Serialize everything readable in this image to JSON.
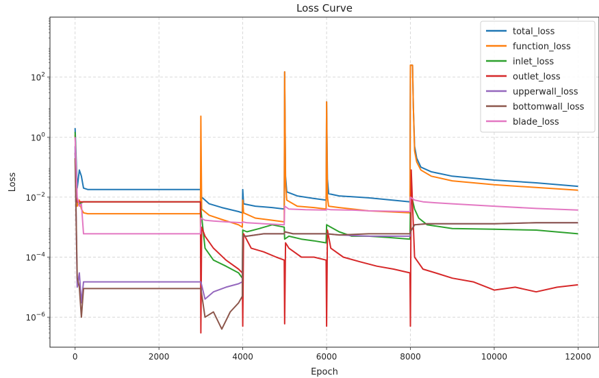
{
  "chart_data": {
    "type": "line",
    "title": "Loss Curve",
    "xlabel": "Epoch",
    "ylabel": "Loss",
    "xlim": [
      -600,
      12500
    ],
    "ylim": [
      1e-07,
      10000.0
    ],
    "yscale": "log",
    "grid": true,
    "legend_position": "top-right",
    "xticks": [
      0,
      2000,
      4000,
      6000,
      8000,
      10000,
      12000
    ],
    "xtick_labels": [
      "0",
      "2000",
      "4000",
      "6000",
      "8000",
      "10000",
      "12000"
    ],
    "yticks": [
      1e-06,
      0.0001,
      0.01,
      1,
      100
    ],
    "ytick_labels": [
      "10",
      "10",
      "10",
      "10",
      "10"
    ],
    "ytick_exponents": [
      "−6",
      "−4",
      "−2",
      "0",
      "2"
    ],
    "series": [
      {
        "name": "total_loss",
        "color": "#1f77b4",
        "x": [
          0,
          50,
          100,
          150,
          200,
          300,
          1000,
          2000,
          2990,
          3000,
          3020,
          3200,
          3500,
          3900,
          3990,
          4000,
          4020,
          4300,
          4700,
          4990,
          5000,
          5020,
          5050,
          5300,
          5700,
          5990,
          6000,
          6020,
          6050,
          6300,
          7000,
          7990,
          8000,
          8050,
          8070,
          8100,
          8150,
          8250,
          8500,
          9000,
          10000,
          11000,
          12000
        ],
        "y": [
          2.0,
          0.02,
          0.08,
          0.05,
          0.02,
          0.018,
          0.018,
          0.018,
          0.018,
          0.015,
          0.01,
          0.006,
          0.0045,
          0.0033,
          0.003,
          0.018,
          0.006,
          0.005,
          0.0045,
          0.004,
          150,
          0.05,
          0.015,
          0.011,
          0.009,
          0.008,
          15,
          0.04,
          0.013,
          0.011,
          0.0095,
          0.007,
          250,
          250,
          10,
          0.5,
          0.2,
          0.1,
          0.07,
          0.05,
          0.037,
          0.03,
          0.023
        ]
      },
      {
        "name": "function_loss",
        "color": "#ff7f0e",
        "x": [
          0,
          50,
          100,
          150,
          200,
          300,
          1000,
          2000,
          2990,
          3000,
          3020,
          3200,
          3500,
          3900,
          3990,
          4000,
          4020,
          4300,
          4700,
          4990,
          5000,
          5020,
          5050,
          5300,
          5700,
          5990,
          6000,
          6020,
          6050,
          6300,
          7000,
          7990,
          8000,
          8050,
          8070,
          8100,
          8150,
          8250,
          8500,
          9000,
          10000,
          11000,
          12000
        ],
        "y": [
          1.2,
          0.005,
          0.008,
          0.004,
          0.003,
          0.0028,
          0.0028,
          0.0028,
          0.0028,
          5.0,
          0.004,
          0.0025,
          0.0018,
          0.0012,
          0.001,
          0.008,
          0.003,
          0.002,
          0.0017,
          0.0015,
          150,
          0.03,
          0.008,
          0.005,
          0.0045,
          0.004,
          15,
          0.01,
          0.005,
          0.0045,
          0.0035,
          0.003,
          250,
          250,
          10,
          0.35,
          0.15,
          0.08,
          0.05,
          0.035,
          0.026,
          0.021,
          0.017
        ]
      },
      {
        "name": "inlet_loss",
        "color": "#2ca02c",
        "x": [
          0,
          50,
          100,
          150,
          200,
          300,
          1000,
          2000,
          2990,
          3000,
          3100,
          3300,
          3600,
          3900,
          3990,
          4000,
          4100,
          4400,
          4700,
          4990,
          5000,
          5100,
          5400,
          5700,
          5990,
          6000,
          6100,
          6300,
          6600,
          7000,
          7500,
          7990,
          8000,
          8050,
          8100,
          8200,
          8400,
          9000,
          10000,
          11000,
          12000
        ],
        "y": [
          1.5,
          0.007,
          0.006,
          0.0065,
          0.007,
          0.007,
          0.007,
          0.007,
          0.007,
          0.004,
          0.0002,
          8e-05,
          5e-05,
          3e-05,
          2e-05,
          0.0008,
          0.0007,
          0.0009,
          0.0012,
          0.001,
          0.0004,
          0.0005,
          0.0004,
          0.00035,
          0.0003,
          0.0012,
          0.001,
          0.0007,
          0.0005,
          0.0005,
          0.00045,
          0.0004,
          0.005,
          0.008,
          0.004,
          0.002,
          0.0012,
          0.0009,
          0.00085,
          0.0008,
          0.0006
        ]
      },
      {
        "name": "outlet_loss",
        "color": "#d62728",
        "x": [
          0,
          50,
          100,
          150,
          200,
          300,
          1000,
          2000,
          2990,
          3000,
          3020,
          3100,
          3300,
          3600,
          3900,
          3990,
          4000,
          4020,
          4200,
          4500,
          4800,
          4990,
          5000,
          5020,
          5100,
          5400,
          5700,
          5990,
          6000,
          6020,
          6100,
          6400,
          6800,
          7200,
          7600,
          7990,
          8000,
          8020,
          8100,
          8300,
          8600,
          9000,
          9500,
          10000,
          10500,
          11000,
          11500,
          12000
        ],
        "y": [
          0.3,
          0.007,
          0.007,
          0.007,
          0.007,
          0.007,
          0.007,
          0.007,
          0.007,
          3e-07,
          0.001,
          0.0005,
          0.0002,
          8e-05,
          4e-05,
          3e-05,
          5e-07,
          0.0006,
          0.0002,
          0.00015,
          0.0001,
          8e-05,
          6e-07,
          0.0003,
          0.0002,
          0.0001,
          0.0001,
          8e-05,
          5e-07,
          0.0008,
          0.0002,
          0.0001,
          7e-05,
          5e-05,
          4e-05,
          3e-05,
          5e-07,
          0.08,
          0.0001,
          4e-05,
          3e-05,
          2e-05,
          1.5e-05,
          8e-06,
          1e-05,
          7e-06,
          1e-05,
          1.2e-05
        ]
      },
      {
        "name": "upperwall_loss",
        "color": "#9467bd",
        "x": [
          0,
          50,
          100,
          150,
          200,
          300,
          1000,
          2000,
          2990,
          3000,
          3100,
          3300,
          3600,
          3900,
          3990,
          4000,
          4100,
          4500,
          4990,
          5000,
          5200,
          5600,
          5990,
          6000,
          6300,
          7000,
          7500,
          7990,
          8000,
          8100,
          8400,
          9000,
          10000,
          11000,
          12000
        ],
        "y": [
          0.5,
          1e-05,
          3e-05,
          3e-06,
          1.5e-05,
          1.5e-05,
          1.5e-05,
          1.5e-05,
          1.5e-05,
          1.5e-05,
          4e-06,
          7e-06,
          1e-05,
          1.3e-05,
          1.5e-05,
          0.0005,
          0.0005,
          0.0006,
          0.0006,
          0.0007,
          0.0006,
          0.0006,
          0.0006,
          0.0006,
          0.00055,
          0.0005,
          0.0005,
          0.0005,
          0.0007,
          0.0012,
          0.0013,
          0.0013,
          0.0013,
          0.0014,
          0.0014
        ]
      },
      {
        "name": "bottomwall_loss",
        "color": "#8c564b",
        "x": [
          0,
          50,
          100,
          150,
          200,
          300,
          1000,
          2000,
          2990,
          3000,
          3100,
          3300,
          3500,
          3700,
          3900,
          3990,
          4000,
          4100,
          4500,
          4990,
          5000,
          5200,
          5600,
          5990,
          6000,
          6300,
          7000,
          7500,
          7990,
          8000,
          8100,
          8400,
          9000,
          10000,
          11000,
          12000
        ],
        "y": [
          0.2,
          2e-05,
          1e-05,
          1e-06,
          9e-06,
          9e-06,
          9e-06,
          9e-06,
          9e-06,
          9e-06,
          1e-06,
          1.5e-06,
          4e-07,
          1.5e-06,
          3e-06,
          5e-06,
          0.0005,
          0.0005,
          0.0006,
          0.0006,
          0.0007,
          0.0006,
          0.0006,
          0.0006,
          0.0006,
          0.00055,
          0.0006,
          0.0006,
          0.0006,
          0.0007,
          0.0012,
          0.0013,
          0.0013,
          0.0013,
          0.0014,
          0.0014
        ]
      },
      {
        "name": "blade_loss",
        "color": "#e377c2",
        "x": [
          0,
          50,
          100,
          150,
          200,
          300,
          1000,
          2000,
          2990,
          3000,
          3100,
          3300,
          3600,
          3990,
          4000,
          4100,
          4500,
          4990,
          5000,
          5100,
          5500,
          5990,
          6000,
          6100,
          6600,
          7000,
          7990,
          8000,
          8100,
          8300,
          8600,
          9000,
          10000,
          11000,
          12000
        ],
        "y": [
          1.0,
          0.01,
          0.005,
          0.006,
          0.0006,
          0.0006,
          0.0006,
          0.0006,
          0.0006,
          0.002,
          0.0017,
          0.0016,
          0.0015,
          0.0014,
          0.0015,
          0.0014,
          0.0013,
          0.0012,
          0.005,
          0.004,
          0.0038,
          0.0037,
          0.004,
          0.0038,
          0.0037,
          0.0035,
          0.0033,
          0.01,
          0.008,
          0.007,
          0.0065,
          0.006,
          0.005,
          0.0042,
          0.0037
        ]
      }
    ]
  }
}
